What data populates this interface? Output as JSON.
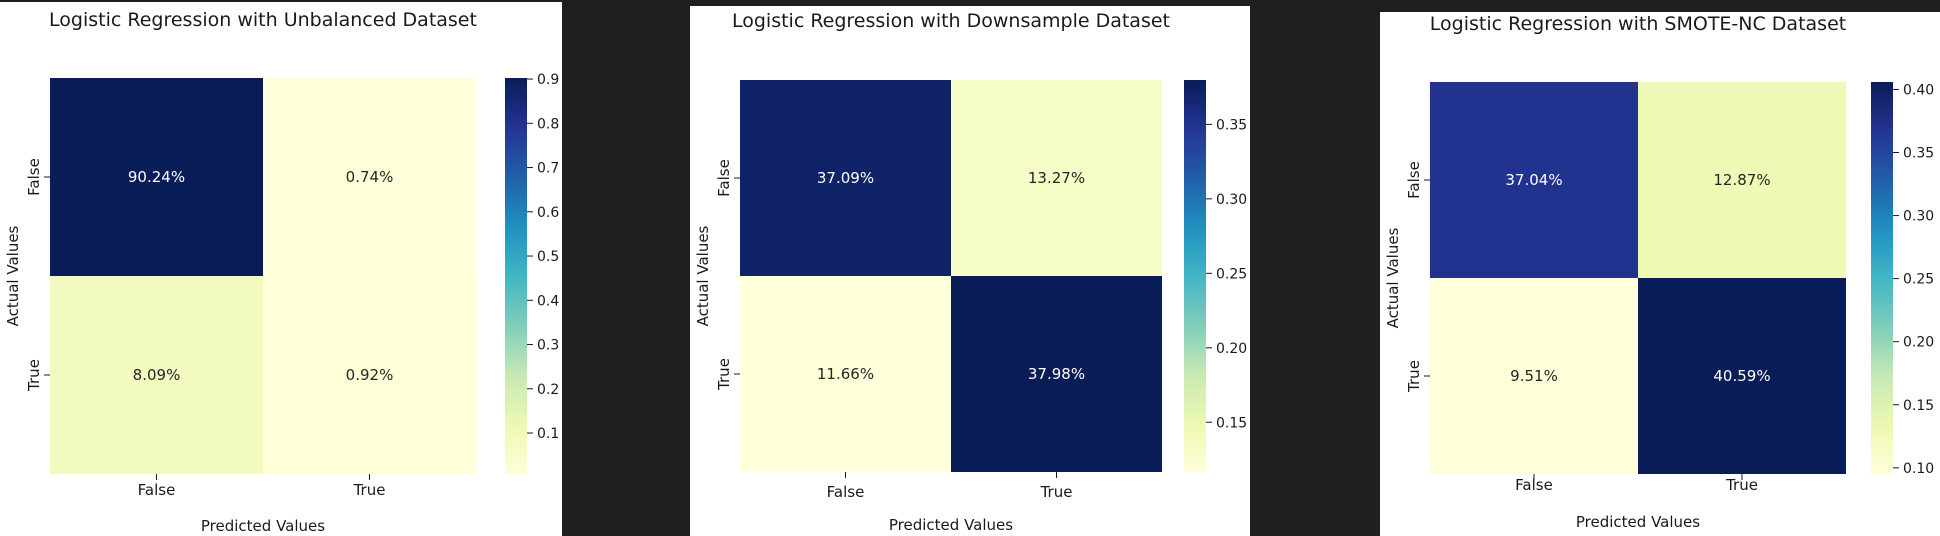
{
  "chart_data": [
    {
      "type": "heatmap",
      "title": "Logistic Regression with Unbalanced Dataset",
      "xlabel": "Predicted Values",
      "ylabel": "Actual Values",
      "x_categories": [
        "False",
        "True"
      ],
      "y_categories": [
        "False",
        "True"
      ],
      "values": [
        [
          0.9024,
          0.0074
        ],
        [
          0.0809,
          0.0092
        ]
      ],
      "annotations": [
        [
          "90.24%",
          "0.74%"
        ],
        [
          "8.09%",
          "0.92%"
        ]
      ],
      "colorbar": {
        "min": 0.0074,
        "max": 0.9024,
        "ticks": [
          0.1,
          0.2,
          0.3,
          0.4,
          0.5,
          0.6,
          0.7,
          0.8,
          0.9
        ],
        "tick_labels": [
          "0.1",
          "0.2",
          "0.3",
          "0.4",
          "0.5",
          "0.6",
          "0.7",
          "0.8",
          "0.9"
        ]
      },
      "colormap": "YlGnBu"
    },
    {
      "type": "heatmap",
      "title": "Logistic Regression with Downsample Dataset",
      "xlabel": "Predicted Values",
      "ylabel": "Actual Values",
      "x_categories": [
        "False",
        "True"
      ],
      "y_categories": [
        "False",
        "True"
      ],
      "values": [
        [
          0.3709,
          0.1327
        ],
        [
          0.1166,
          0.3798
        ]
      ],
      "annotations": [
        [
          "37.09%",
          "13.27%"
        ],
        [
          "11.66%",
          "37.98%"
        ]
      ],
      "colorbar": {
        "min": 0.1166,
        "max": 0.3798,
        "ticks": [
          0.15,
          0.2,
          0.25,
          0.3,
          0.35
        ],
        "tick_labels": [
          "0.15",
          "0.20",
          "0.25",
          "0.30",
          "0.35"
        ]
      },
      "colormap": "YlGnBu"
    },
    {
      "type": "heatmap",
      "title": "Logistic Regression with SMOTE-NC Dataset",
      "xlabel": "Predicted Values",
      "ylabel": "Actual Values",
      "x_categories": [
        "False",
        "True"
      ],
      "y_categories": [
        "False",
        "True"
      ],
      "values": [
        [
          0.3704,
          0.1287
        ],
        [
          0.0951,
          0.4059
        ]
      ],
      "annotations": [
        [
          "37.04%",
          "12.87%"
        ],
        [
          "9.51%",
          "40.59%"
        ]
      ],
      "colorbar": {
        "min": 0.0951,
        "max": 0.4059,
        "ticks": [
          0.1,
          0.15,
          0.2,
          0.25,
          0.3,
          0.35,
          0.4
        ],
        "tick_labels": [
          "0.10",
          "0.15",
          "0.20",
          "0.25",
          "0.30",
          "0.35",
          "0.40"
        ]
      },
      "colormap": "YlGnBu"
    }
  ]
}
